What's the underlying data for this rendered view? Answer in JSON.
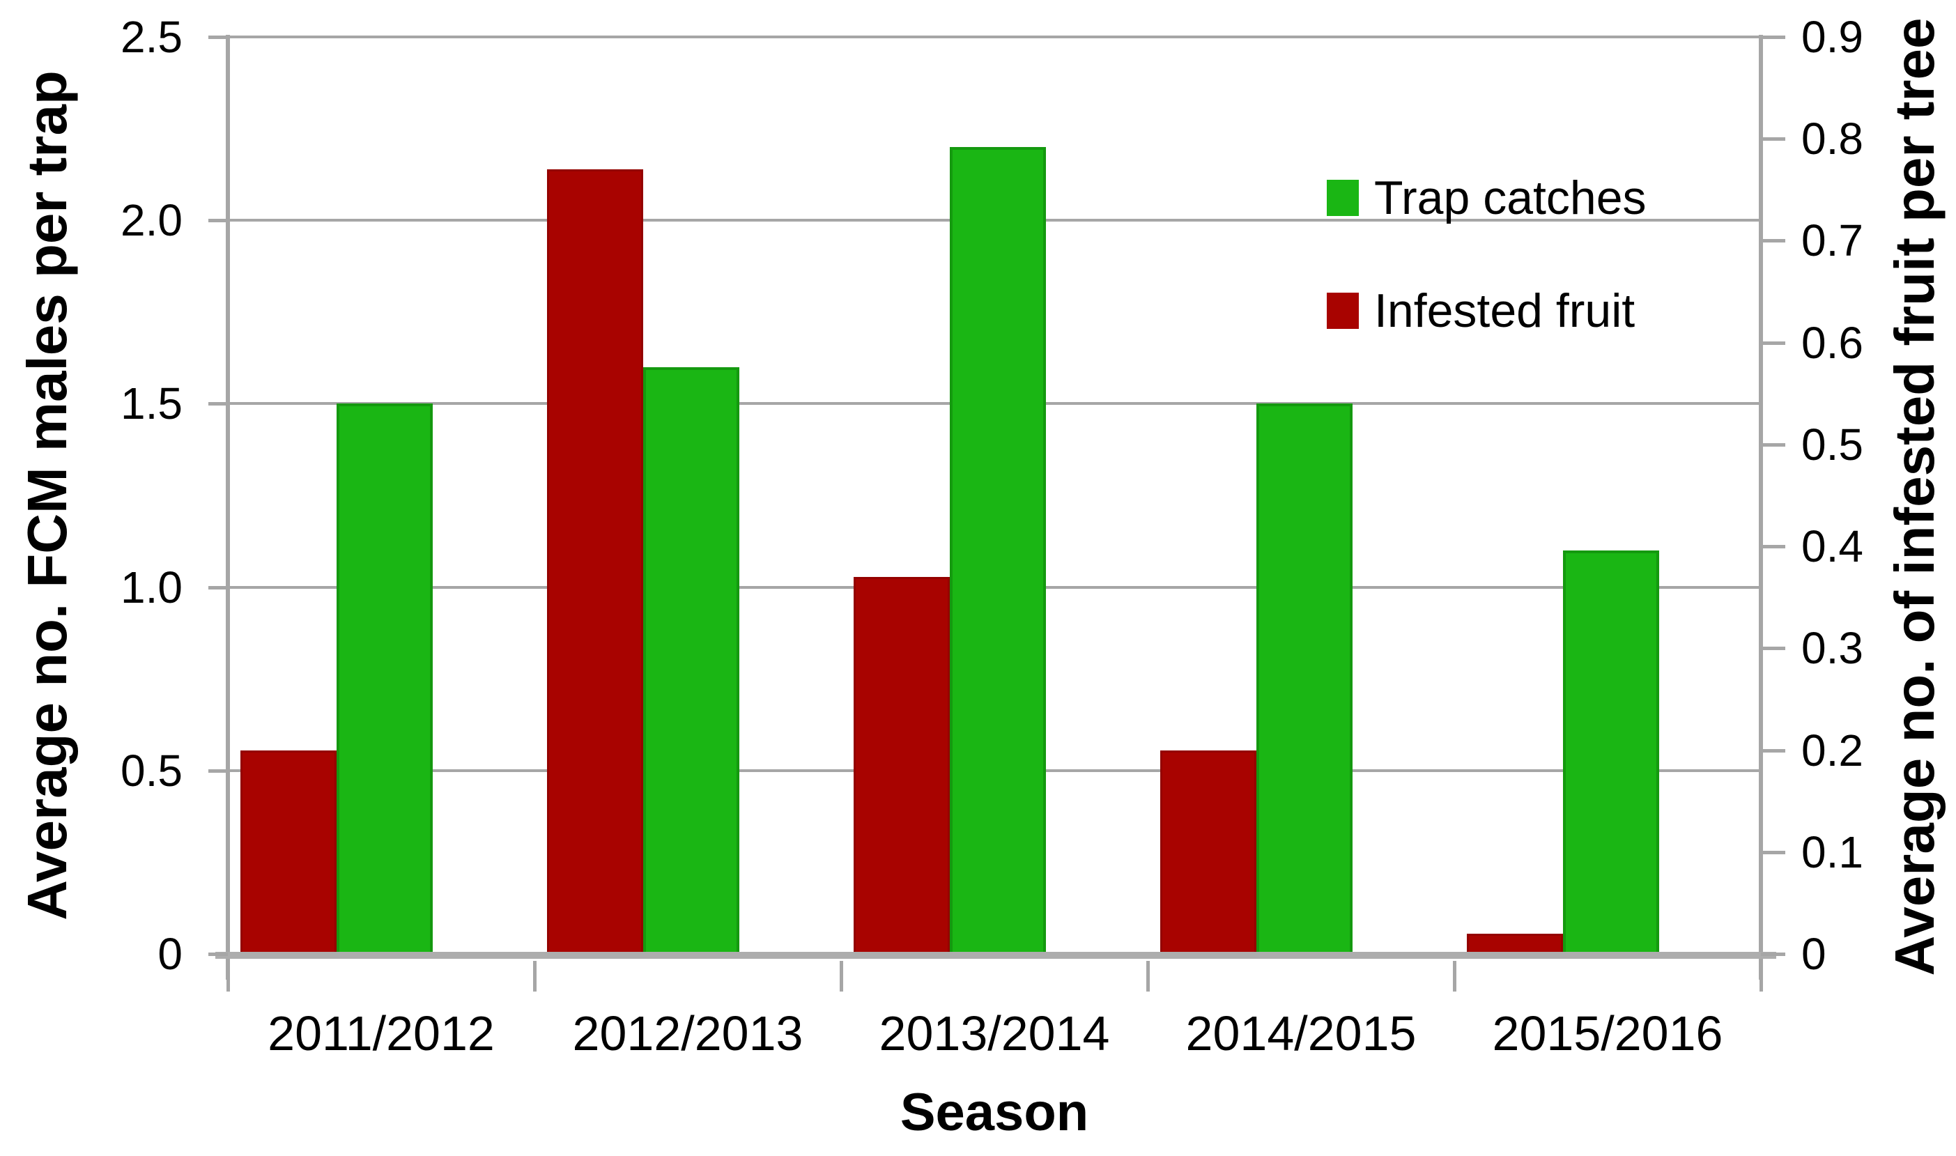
{
  "chart_data": {
    "type": "bar",
    "title": "",
    "categories": [
      "2011/2012",
      "2012/2013",
      "2013/2014",
      "2014/2015",
      "2015/2016"
    ],
    "series": [
      {
        "name": "Infested fruit",
        "axis": "right",
        "color": "#a80300",
        "values": [
          0.2,
          0.77,
          0.37,
          0.2,
          0.02
        ]
      },
      {
        "name": "Trap catches",
        "axis": "left",
        "color": "#1ab614",
        "values": [
          1.5,
          1.6,
          2.2,
          1.5,
          1.1
        ]
      }
    ],
    "x_axis": {
      "title": "Season"
    },
    "left_axis": {
      "title": "Average no. FCM males per trap",
      "range": [
        0,
        2.5
      ],
      "tick_step": 0.5,
      "tick_labels_top_to_bottom": [
        "2.5",
        "2.0",
        "1.5",
        "1.0",
        "0.5",
        "0"
      ]
    },
    "right_axis": {
      "title": "Average no. of infested fruit per tree",
      "range": [
        0,
        0.9
      ],
      "tick_step": 0.1,
      "tick_labels_top_to_bottom": [
        "0.9",
        "0.8",
        "0.7",
        "0.6",
        "0.5",
        "0.4",
        "0.3",
        "0.2",
        "0.1",
        "0"
      ]
    },
    "legend": {
      "position": "top-right-inside",
      "entries": [
        {
          "label": "Trap catches",
          "color": "#1ab614"
        },
        {
          "label": "Infested fruit",
          "color": "#a80300"
        }
      ]
    },
    "grid": {
      "horizontal_gridlines_at_left_axis_step": 0.5,
      "color": "#a6a6a6"
    }
  }
}
